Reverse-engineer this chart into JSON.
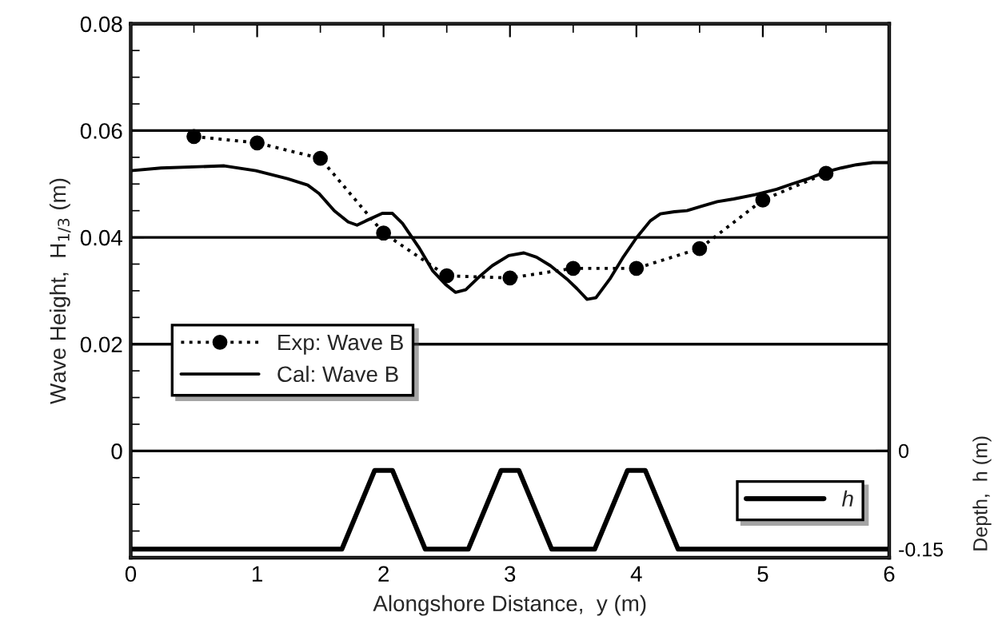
{
  "chart_data": {
    "type": "line",
    "xlabel": "Alongshore Distance,  y (m)",
    "ylabel": "Wave Height,  H$_{1/3}$ (m)",
    "y2label": "Depth,  h (m)",
    "xlim": [
      0,
      6
    ],
    "xticks": [
      0,
      {
        "value": 0.5,
        "label": null
      },
      1,
      {
        "value": 1.5,
        "label": null
      },
      2,
      {
        "value": 2.5,
        "label": null
      },
      3,
      {
        "value": 3.5,
        "label": null
      },
      4,
      {
        "value": 4.5,
        "label": null
      },
      5,
      {
        "value": 5.5,
        "label": null
      },
      6
    ],
    "ylim": [
      -0.02,
      0.08
    ],
    "yticks": [
      {
        "value": -0.015,
        "label": null
      },
      {
        "value": -0.01,
        "label": null
      },
      {
        "value": -0.005,
        "label": null
      },
      0,
      {
        "value": 0.005,
        "label": null
      },
      {
        "value": 0.01,
        "label": null
      },
      {
        "value": 0.015,
        "label": null
      },
      0.02,
      {
        "value": 0.025,
        "label": null
      },
      {
        "value": 0.03,
        "label": null
      },
      {
        "value": 0.035,
        "label": null
      },
      0.04,
      {
        "value": 0.045,
        "label": null
      },
      {
        "value": 0.05,
        "label": null
      },
      {
        "value": 0.055,
        "label": null
      },
      0.06,
      {
        "value": 0.065,
        "label": null
      },
      {
        "value": 0.07,
        "label": null
      },
      {
        "value": 0.075,
        "label": null
      },
      0.08
    ],
    "y2lim": [
      -0.163,
      0.65
    ],
    "y2ticks": [
      0,
      {
        "value": -0.15,
        "label": "-0.15"
      }
    ],
    "grid": "y",
    "legend": "center left",
    "series": [
      {
        "name": "Exp: Wave B",
        "color": "#000000",
        "marker": "circle",
        "line_style": "dotted",
        "x": [
          0.5,
          1.0,
          1.5,
          2.0,
          2.5,
          3.0,
          3.5,
          4.0,
          4.5,
          5.0,
          5.5
        ],
        "values": [
          0.0589,
          0.0577,
          0.0548,
          0.0408,
          0.0328,
          0.0324,
          0.0342,
          0.0342,
          0.0379,
          0.047,
          0.052
        ]
      },
      {
        "name": "Cal: Wave B",
        "color": "#000000",
        "line_style": "solid",
        "x": [
          0,
          0.24,
          0.74,
          0.99,
          1.24,
          1.4,
          1.49,
          1.61,
          1.72,
          1.79,
          1.86,
          1.99,
          2.07,
          2.15,
          2.28,
          2.39,
          2.49,
          2.57,
          2.65,
          2.76,
          2.86,
          2.99,
          3.11,
          3.21,
          3.32,
          3.45,
          3.53,
          3.61,
          3.68,
          3.79,
          3.89,
          4.0,
          4.11,
          4.19,
          4.3,
          4.4,
          4.51,
          4.64,
          4.77,
          4.94,
          5.11,
          5.23,
          5.36,
          5.49,
          5.62,
          5.74,
          5.87,
          6.0
        ],
        "values": [
          0.0525,
          0.053,
          0.0534,
          0.0525,
          0.051,
          0.0498,
          0.0482,
          0.045,
          0.0429,
          0.0423,
          0.0431,
          0.0445,
          0.0445,
          0.0426,
          0.0381,
          0.0337,
          0.0312,
          0.0297,
          0.0302,
          0.0327,
          0.0347,
          0.0366,
          0.0371,
          0.0363,
          0.0347,
          0.0322,
          0.0304,
          0.0284,
          0.0287,
          0.0322,
          0.0361,
          0.0399,
          0.0431,
          0.0444,
          0.0448,
          0.045,
          0.0458,
          0.0467,
          0.0472,
          0.048,
          0.049,
          0.05,
          0.051,
          0.0522,
          0.053,
          0.0536,
          0.054,
          0.054
        ]
      },
      {
        "name": "h",
        "color": "#000000",
        "line_style": "solid",
        "axis": "y2",
        "x": [
          0,
          1.67,
          1.93,
          2.07,
          2.33,
          2.67,
          2.93,
          3.07,
          3.33,
          3.67,
          3.93,
          4.07,
          4.33,
          6
        ],
        "values": [
          -0.15,
          -0.15,
          -0.03,
          -0.03,
          -0.15,
          -0.15,
          -0.03,
          -0.03,
          -0.15,
          -0.15,
          -0.03,
          -0.03,
          -0.15,
          -0.15
        ]
      }
    ]
  }
}
